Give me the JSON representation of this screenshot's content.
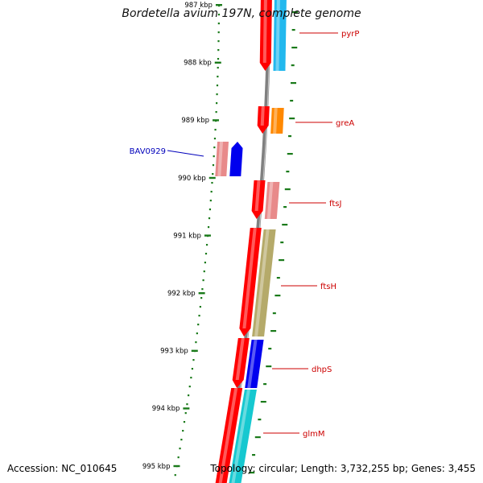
{
  "title": "Bordetella avium 197N, complete genome",
  "footer": {
    "accession": "Accession: NC_010645",
    "summary": "Topology: circular; Length: 3,732,255 bp; Genes: 3,455"
  },
  "scale_labels": [
    "987 kbp",
    "988 kbp",
    "989 kbp",
    "990 kbp",
    "991 kbp",
    "992 kbp",
    "993 kbp",
    "994 kbp",
    "995 kbp"
  ],
  "genes": [
    {
      "name": "pyrP",
      "label_color": "#cc0000",
      "cog_color": "#22b8ee"
    },
    {
      "name": "greA",
      "label_color": "#cc0000",
      "cog_color": "#ff8800"
    },
    {
      "name": "BAV0929",
      "label_color": "#0000bb",
      "cog_color": "#e88a8a"
    },
    {
      "name": "ftsJ",
      "label_color": "#cc0000",
      "cog_color": "#e88a8a"
    },
    {
      "name": "ftsH",
      "label_color": "#cc0000",
      "cog_color": "#b5aa6a"
    },
    {
      "name": "dhpS",
      "label_color": "#cc0000",
      "cog_color": "#0000ee"
    },
    {
      "name": "glmM",
      "label_color": "#cc0000",
      "cog_color": "#16c8d0"
    }
  ],
  "colors": {
    "backbone": "#808080",
    "feature_red": "#ff0000",
    "tick_green": "#1a7a1a",
    "label_line_red": "#cc0000",
    "label_line_blue": "#0000bb"
  }
}
